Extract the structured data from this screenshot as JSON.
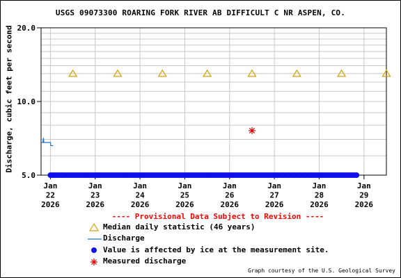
{
  "title": "USGS 09073300 ROARING FORK RIVER AB DIFFICULT C NR ASPEN, CO.",
  "subtitle": "---- Provisional Data Subject to Revision ----",
  "credit": "Graph courtesy of the U.S. Geological Survey",
  "colors": {
    "median": "#d4a000",
    "discharge": "#1e6fd0",
    "ice": "#1010ee",
    "measured": "#dd0000",
    "subtitle": "#ff0000",
    "grid": "#c8c8c8"
  },
  "legend": [
    {
      "symbol": "triangle-icon",
      "label": "Median daily statistic (46 years)"
    },
    {
      "symbol": "line-icon",
      "label": "Discharge"
    },
    {
      "symbol": "dot-icon",
      "label": "Value is affected by ice at the measurement site."
    },
    {
      "symbol": "star-icon",
      "label": "Measured discharge"
    }
  ],
  "chart_data": {
    "type": "scatter",
    "ylabel": "Discharge, cubic feet per second",
    "xlabel": "",
    "y_scale": "log",
    "ylim": [
      5.0,
      20.0
    ],
    "xlim": [
      "2026-01-21 19:00",
      "2026-01-29 12:00"
    ],
    "y_ticks": [
      {
        "value": 5.0,
        "label": "5.0"
      },
      {
        "value": 10.0,
        "label": "10.0"
      },
      {
        "value": 20.0,
        "label": "20.0"
      }
    ],
    "x_ticks": [
      {
        "date": "2026-01-22",
        "label": [
          "Jan",
          "22",
          "2026"
        ]
      },
      {
        "date": "2026-01-23",
        "label": [
          "Jan",
          "23",
          "2026"
        ]
      },
      {
        "date": "2026-01-24",
        "label": [
          "Jan",
          "24",
          "2026"
        ]
      },
      {
        "date": "2026-01-25",
        "label": [
          "Jan",
          "25",
          "2026"
        ]
      },
      {
        "date": "2026-01-26",
        "label": [
          "Jan",
          "26",
          "2026"
        ]
      },
      {
        "date": "2026-01-27",
        "label": [
          "Jan",
          "27",
          "2026"
        ]
      },
      {
        "date": "2026-01-28",
        "label": [
          "Jan",
          "28",
          "2026"
        ]
      },
      {
        "date": "2026-01-29",
        "label": [
          "Jan",
          "29",
          "2026"
        ]
      }
    ],
    "grid": true,
    "series": [
      {
        "name": "Median daily statistic (46 years)",
        "marker": "triangle",
        "points": [
          {
            "x": "2026-01-22 12:00",
            "y": 13.0
          },
          {
            "x": "2026-01-23 12:00",
            "y": 13.0
          },
          {
            "x": "2026-01-24 12:00",
            "y": 13.0
          },
          {
            "x": "2026-01-25 12:00",
            "y": 13.0
          },
          {
            "x": "2026-01-26 12:00",
            "y": 13.0
          },
          {
            "x": "2026-01-27 12:00",
            "y": 13.0
          },
          {
            "x": "2026-01-28 12:00",
            "y": 13.0
          },
          {
            "x": "2026-01-29 12:00",
            "y": 13.0
          }
        ]
      },
      {
        "name": "Discharge",
        "marker": "line",
        "points": [
          {
            "x": "2026-01-21 19:00",
            "y": 6.8
          },
          {
            "x": "2026-01-21 20:00",
            "y": 6.8
          },
          {
            "x": "2026-01-21 20:15",
            "y": 7.1
          },
          {
            "x": "2026-01-21 20:30",
            "y": 6.8
          },
          {
            "x": "2026-01-22 00:00",
            "y": 6.8
          },
          {
            "x": "2026-01-22 00:15",
            "y": 6.6
          },
          {
            "x": "2026-01-22 01:30",
            "y": 6.6
          }
        ]
      },
      {
        "name": "Value is affected by ice at the measurement site.",
        "marker": "dot",
        "x_start": "2026-01-22 00:00",
        "x_end": "2026-01-28 20:00",
        "step_hours": 1,
        "y": 5.0
      },
      {
        "name": "Measured discharge",
        "marker": "star",
        "points": [
          {
            "x": "2026-01-26 12:00",
            "y": 7.6
          }
        ]
      }
    ]
  }
}
